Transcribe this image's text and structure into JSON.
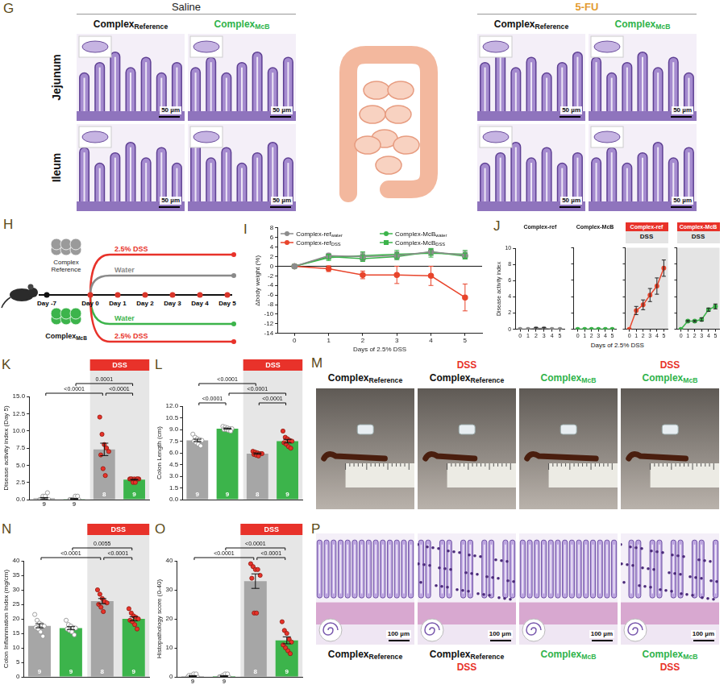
{
  "panels": {
    "G": {
      "letter": "G",
      "groups": [
        {
          "title": "Saline",
          "color": "#222222"
        },
        {
          "title": "5-FU",
          "color": "#e39b2f"
        }
      ],
      "columns": [
        {
          "text": "Complex",
          "sub": "Reference",
          "color": "#111111"
        },
        {
          "text": "Complex",
          "sub": "McB",
          "color": "#2eb34a"
        }
      ],
      "rows": [
        "Jejunum",
        "Ileum"
      ],
      "scale_bar": "50 µm"
    },
    "H": {
      "letter": "H",
      "top_compound": "Complex Reference",
      "bottom_compound": {
        "text": "Complex",
        "sub": "McB",
        "color": "#111111"
      },
      "treatments": [
        {
          "text": "2.5% DSS",
          "color": "#e8322a"
        },
        {
          "text": "Water",
          "color": "#8a8a8a"
        },
        {
          "text": "Water",
          "color": "#3cb44b"
        },
        {
          "text": "2.5% DSS",
          "color": "#e8322a"
        }
      ],
      "days": [
        "Day -7",
        "Day 0",
        "Day 1",
        "Day 2",
        "Day 3",
        "Day 4",
        "Day 5"
      ]
    },
    "M": {
      "letter": "M",
      "photos": [
        {
          "label": {
            "text": "Complex",
            "sub": "Reference",
            "color": "#111111"
          }
        },
        {
          "header": "DSS",
          "label": {
            "text": "Complex",
            "sub": "Reference",
            "color": "#111111"
          }
        },
        {
          "label": {
            "text": "Complex",
            "sub": "McB",
            "color": "#2eb34a"
          }
        },
        {
          "header": "DSS",
          "label": {
            "text": "Complex",
            "sub": "McB",
            "color": "#2eb34a"
          }
        }
      ]
    },
    "P": {
      "letter": "P",
      "scale_bar": "100 µm",
      "images": [
        {
          "label": {
            "text": "Complex",
            "sub": "Reference",
            "color": "#111111"
          }
        },
        {
          "label": {
            "text": "Complex",
            "sub": "Reference",
            "color": "#111111"
          },
          "footer": "DSS"
        },
        {
          "label": {
            "text": "Complex",
            "sub": "McB",
            "color": "#2eb34a"
          }
        },
        {
          "label": {
            "text": "Complex",
            "sub": "McB",
            "color": "#2eb34a"
          },
          "footer": "DSS"
        }
      ]
    }
  },
  "chart_data": [
    {
      "panel": "I",
      "type": "line",
      "xlabel": "Days of 2.5% DSS",
      "ylabel": "Δbody weight (%)",
      "x": [
        0,
        1,
        2,
        3,
        4,
        5
      ],
      "xlim": [
        -0.5,
        5.5
      ],
      "xticks": [
        0,
        1,
        2,
        3,
        4,
        5
      ],
      "ylim": [
        -14,
        8
      ],
      "yticks": [
        -14,
        -12,
        -10,
        -8,
        -6,
        -4,
        -2,
        0,
        2,
        4,
        6,
        8
      ],
      "grid": false,
      "legend": "top",
      "reference_line": 0,
      "series": [
        {
          "name": "Complex-ref",
          "sub": "water",
          "color": "#8c8c8c",
          "marker": "circle",
          "line_style": "solid",
          "values": [
            0,
            2.2,
            2.0,
            2.2,
            3.0,
            2.3
          ],
          "errors": [
            0,
            0.5,
            0.8,
            0.8,
            0.7,
            0.8
          ]
        },
        {
          "name": "Complex-McB",
          "sub": "water",
          "color": "#3cb44b",
          "marker": "circle",
          "line_style": "solid",
          "values": [
            0,
            2.0,
            1.6,
            2.0,
            3.0,
            2.1
          ],
          "errors": [
            0,
            0.5,
            0.6,
            0.6,
            0.7,
            0.6
          ]
        },
        {
          "name": "Complex-ref",
          "sub": "DSS",
          "color": "#e8452c",
          "marker": "circle",
          "line_style": "solid",
          "values": [
            0,
            -0.5,
            -1.8,
            -1.8,
            -2.0,
            -6.5
          ],
          "errors": [
            0,
            0.6,
            0.8,
            1.8,
            2.0,
            2.8
          ]
        },
        {
          "name": "Complex-McB",
          "sub": "DSS",
          "color": "#3cb44b",
          "marker": "square",
          "line_style": "solid",
          "values": [
            0,
            1.8,
            2.2,
            2.5,
            2.7,
            2.5
          ],
          "errors": [
            0,
            0.6,
            0.8,
            0.8,
            0.8,
            0.8
          ]
        }
      ]
    },
    {
      "panel": "J",
      "type": "line",
      "xlabel": "Days of 2.5% DSS",
      "ylabel": "Disease activity index",
      "x": [
        0,
        1,
        2,
        3,
        4,
        5
      ],
      "xlim": [
        -0.6,
        5.6
      ],
      "xticks": [
        0,
        1,
        2,
        3,
        4,
        5
      ],
      "ylim": [
        0,
        10
      ],
      "yticks": [
        0,
        2,
        4,
        6,
        8,
        10
      ],
      "grid": false,
      "facets": [
        {
          "title": "Complex-ref",
          "color": "#8c8c8c",
          "marker": "circle",
          "values": [
            0,
            0,
            0.1,
            0.1,
            0,
            0
          ],
          "errors": [
            0,
            0,
            0.1,
            0.1,
            0,
            0
          ]
        },
        {
          "title": "Complex-McB",
          "color": "#3cb44b",
          "marker": "circle",
          "values": [
            0,
            0,
            0,
            0,
            0,
            0
          ],
          "errors": [
            0,
            0,
            0,
            0,
            0,
            0
          ]
        },
        {
          "title": "Complex-ref",
          "header": "DSS",
          "color": "#e8452c",
          "marker": "circle",
          "values": [
            0,
            2.3,
            3.0,
            4.2,
            5.3,
            7.5
          ],
          "errors": [
            0,
            0.5,
            0.6,
            0.8,
            1.0,
            1.0
          ]
        },
        {
          "title": "Complex-McB",
          "header": "DSS",
          "color": "#3cb44b",
          "marker": "circle",
          "values": [
            0,
            1.0,
            1.0,
            1.2,
            2.4,
            2.8
          ],
          "errors": [
            0,
            0.1,
            0.1,
            0.2,
            0.2,
            0.3
          ]
        }
      ]
    },
    {
      "panel": "K",
      "type": "bar",
      "ylabel": "Disease activity index (Day 5)",
      "categories": [
        null,
        null,
        null,
        null
      ],
      "values": [
        0.2,
        0.1,
        7.3,
        2.9
      ],
      "errors": [
        0.1,
        0.06,
        0.9,
        0.06
      ],
      "colors": [
        "#a6a6a6",
        "#3cb44b",
        "#a6a6a6",
        "#3cb44b"
      ],
      "n": [
        9,
        9,
        8,
        9
      ],
      "points": [
        [
          0,
          0,
          0,
          0,
          0,
          0,
          0.5,
          0.5,
          1
        ],
        [
          0,
          0,
          0,
          0,
          0,
          0,
          0,
          0.5,
          0.5
        ],
        [
          12,
          9.5,
          8,
          7.5,
          7,
          6.5,
          4.5,
          3.5
        ],
        [
          3,
          3,
          3,
          3,
          3,
          3,
          2.5,
          2.5,
          3
        ]
      ],
      "ylim": [
        0,
        15
      ],
      "yticks": [
        {
          "value": 0,
          "label": "0.0"
        },
        2.5,
        {
          "value": 5,
          "label": "5.0"
        },
        7.5,
        {
          "value": 10,
          "label": "10.0"
        },
        12.5,
        {
          "value": 15,
          "label": "15.0"
        }
      ],
      "grid": false,
      "tick_labels": "y",
      "annotations": [
        {
          "text": "DSS",
          "from": 2,
          "to": 3
        }
      ],
      "comparisons": [
        {
          "from": 0,
          "to": 2,
          "label": "<0.0001"
        },
        {
          "from": 2,
          "to": 3,
          "label": "<0.0001"
        },
        {
          "from": 1,
          "to": 3,
          "label": "0.0001"
        }
      ]
    },
    {
      "panel": "L",
      "type": "bar",
      "ylabel": "Colon Length (cm)",
      "categories": [
        null,
        null,
        null,
        null
      ],
      "values": [
        7.6,
        9.1,
        5.9,
        7.5
      ],
      "errors": [
        0.16,
        0.07,
        0.08,
        0.23
      ],
      "colors": [
        "#a6a6a6",
        "#3cb44b",
        "#a6a6a6",
        "#3cb44b"
      ],
      "n": [
        9,
        9,
        8,
        9
      ],
      "points": [
        [
          8.4,
          8.0,
          7.8,
          7.7,
          7.6,
          7.5,
          7.3,
          7.1,
          6.9
        ],
        [
          9.4,
          9.3,
          9.2,
          9.1,
          9.1,
          9.0,
          9.0,
          8.9,
          8.8
        ],
        [
          6.2,
          6.1,
          6.0,
          5.9,
          5.9,
          5.8,
          5.7,
          5.6
        ],
        [
          8.8,
          8.0,
          7.8,
          7.6,
          7.5,
          7.3,
          7.1,
          6.8,
          6.6
        ]
      ],
      "ylim": [
        0,
        12
      ],
      "yticks": [
        {
          "value": 0,
          "label": "0.0"
        },
        1.5,
        {
          "value": 3,
          "label": "3.0"
        },
        4.5,
        {
          "value": 6,
          "label": "6.0"
        },
        7.5,
        {
          "value": 9,
          "label": "9.0"
        },
        10.5,
        {
          "value": 12,
          "label": "12.0"
        }
      ],
      "grid": false,
      "tick_labels": "y",
      "annotations": [
        {
          "text": "DSS",
          "from": 2,
          "to": 3
        }
      ],
      "comparisons": [
        {
          "from": 0,
          "to": 1,
          "label": "<0.0001"
        },
        {
          "from": 2,
          "to": 3,
          "label": "<0.0001"
        },
        {
          "from": 1,
          "to": 3,
          "label": "<0.0001"
        },
        {
          "from": 0,
          "to": 2,
          "label": "<0.0001"
        }
      ]
    },
    {
      "panel": "N",
      "type": "bar",
      "ylabel": "Colon Inflammation Index (mg/cm)",
      "categories": [
        null,
        null,
        null,
        null
      ],
      "values": [
        17.6,
        16.8,
        26.1,
        20.0
      ],
      "errors": [
        0.7,
        0.5,
        0.9,
        0.7
      ],
      "colors": [
        "#a6a6a6",
        "#3cb44b",
        "#a6a6a6",
        "#3cb44b"
      ],
      "n": [
        9,
        9,
        8,
        9
      ],
      "points": [
        [
          21.5,
          19.5,
          18.5,
          18.0,
          17.5,
          17.0,
          16.5,
          15.5,
          14.0
        ],
        [
          19.5,
          18.0,
          17.5,
          17.0,
          16.8,
          16.5,
          16.0,
          15.5,
          14.5
        ],
        [
          30.0,
          28.5,
          27.0,
          26.0,
          25.5,
          25.0,
          24.0,
          22.5
        ],
        [
          23.5,
          22.0,
          21.0,
          20.5,
          20.0,
          19.5,
          19.0,
          18.0,
          16.5
        ]
      ],
      "ylim": [
        0,
        40
      ],
      "yticks": [
        0,
        5,
        10,
        15,
        20,
        25,
        30,
        35,
        40
      ],
      "grid": false,
      "tick_labels": "y",
      "annotations": [
        {
          "text": "DSS",
          "from": 2,
          "to": 3
        }
      ],
      "comparisons": [
        {
          "from": 0,
          "to": 2,
          "label": "<0.0001"
        },
        {
          "from": 2,
          "to": 3,
          "label": "<0.0001"
        },
        {
          "from": 1,
          "to": 3,
          "label": "0.0055"
        }
      ]
    },
    {
      "panel": "O",
      "type": "bar",
      "ylabel": "Histopathology score (0-40)",
      "categories": [
        null,
        null,
        null,
        null
      ],
      "values": [
        0.3,
        0.3,
        33.0,
        12.6
      ],
      "errors": [
        0.15,
        0.15,
        2.5,
        1.2
      ],
      "colors": [
        "#a6a6a6",
        "#3cb44b",
        "#a6a6a6",
        "#3cb44b"
      ],
      "n": [
        9,
        9,
        8,
        9
      ],
      "points": [
        [
          0,
          0,
          0,
          0,
          0,
          0.5,
          0.5,
          1,
          1
        ],
        [
          0,
          0,
          0,
          0,
          0,
          0,
          0.5,
          1,
          1
        ],
        [
          39,
          38,
          37,
          37,
          35,
          34,
          22,
          22
        ],
        [
          19,
          16,
          15,
          13,
          12,
          11,
          10,
          9,
          8
        ]
      ],
      "ylim": [
        0,
        40
      ],
      "yticks": [
        0,
        10,
        20,
        30,
        40
      ],
      "grid": false,
      "tick_labels": "y",
      "annotations": [
        {
          "text": "DSS",
          "from": 2,
          "to": 3
        }
      ],
      "comparisons": [
        {
          "from": 2,
          "to": 3,
          "label": "<0.0001"
        },
        {
          "from": 1,
          "to": 3,
          "label": "<0.0001"
        },
        {
          "from": 0,
          "to": 2,
          "label": "<0.0001"
        }
      ]
    }
  ]
}
